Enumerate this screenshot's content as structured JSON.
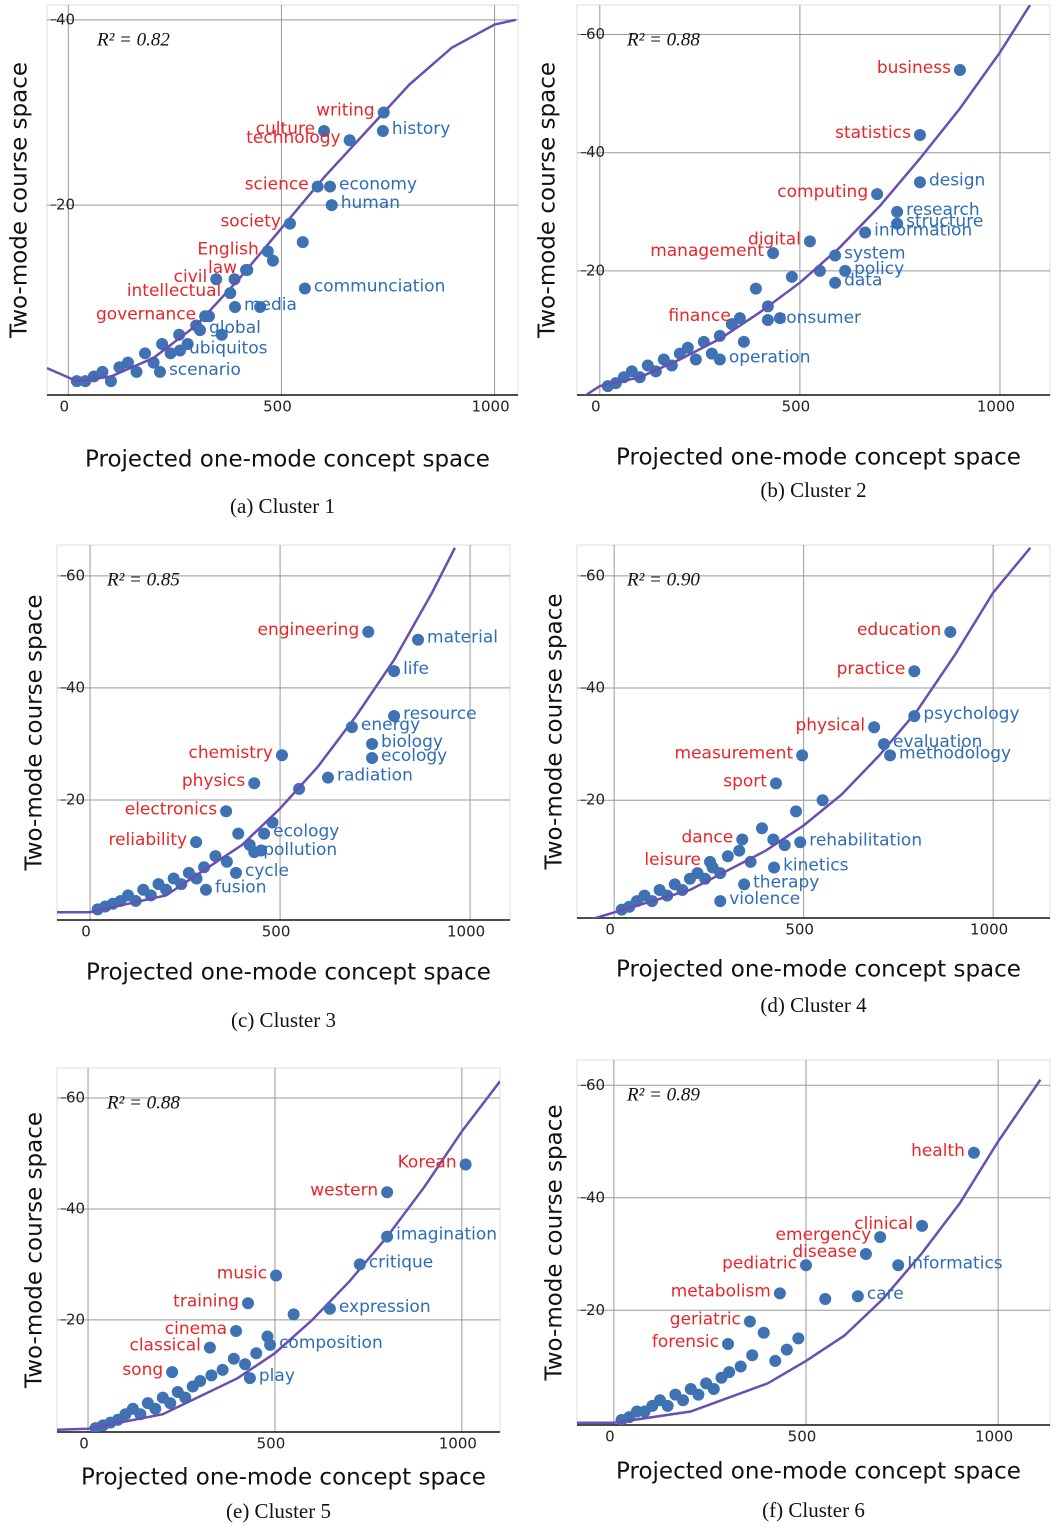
{
  "chart_data": [
    {
      "type": "scatter",
      "caption": "(a)  Cluster 1",
      "annotation": "R² = 0.82",
      "xlabel": "Projected one-mode concept space",
      "ylabel": "Two-mode course space",
      "xlim": [
        -50,
        1055
      ],
      "ylim": [
        -0.5,
        41.6
      ],
      "xticks": [
        0,
        500,
        1000
      ],
      "yticks": [
        20,
        40
      ],
      "grid": true,
      "color": "#3e72b3",
      "x": [
        20,
        40,
        60,
        80,
        100,
        120,
        140,
        160,
        180,
        200,
        220,
        240,
        260,
        280,
        300,
        330,
        360,
        390,
        420,
        450,
        480,
        550
      ],
      "y": [
        1,
        1,
        1.5,
        2,
        1,
        2.5,
        3,
        2,
        4,
        3,
        5,
        4,
        6,
        5,
        7,
        8,
        6,
        12,
        13,
        9,
        14,
        16
      ],
      "labeled_points": [
        {
          "label": "writing",
          "x": 740,
          "y": 30,
          "label_color": "#e8262a"
        },
        {
          "label": "culture",
          "x": 600,
          "y": 28,
          "label_color": "#e8262a"
        },
        {
          "label": "technology",
          "x": 660,
          "y": 27,
          "label_color": "#e8262a"
        },
        {
          "label": "history",
          "x": 738,
          "y": 28,
          "label_color": "#2e6db4"
        },
        {
          "label": "science",
          "x": 585,
          "y": 22,
          "label_color": "#e8262a"
        },
        {
          "label": "economy",
          "x": 614,
          "y": 22,
          "label_color": "#2e6db4"
        },
        {
          "label": "human",
          "x": 618,
          "y": 20,
          "label_color": "#2e6db4"
        },
        {
          "label": "society",
          "x": 520,
          "y": 18,
          "label_color": "#e8262a"
        },
        {
          "label": "English",
          "x": 468,
          "y": 15,
          "label_color": "#e8262a"
        },
        {
          "label": "law",
          "x": 417,
          "y": 13,
          "label_color": "#e8262a"
        },
        {
          "label": "civil",
          "x": 347,
          "y": 12,
          "label_color": "#e8262a"
        },
        {
          "label": "communciation",
          "x": 555,
          "y": 11,
          "label_color": "#2e6db4"
        },
        {
          "label": "intellectual",
          "x": 380,
          "y": 10.5,
          "label_color": "#e8262a"
        },
        {
          "label": "governance",
          "x": 321,
          "y": 8,
          "label_color": "#e8262a"
        },
        {
          "label": "media",
          "x": 391,
          "y": 9,
          "label_color": "#2e6db4"
        },
        {
          "label": "global",
          "x": 309,
          "y": 6.5,
          "label_color": "#2e6db4"
        },
        {
          "label": "ubiquitos",
          "x": 262,
          "y": 4.3,
          "label_color": "#2e6db4"
        },
        {
          "label": "scenario",
          "x": 215,
          "y": 2,
          "label_color": "#2e6db4"
        }
      ],
      "fit": {
        "color": "#6a4fb3",
        "x": [
          -50,
          20,
          100,
          200,
          300,
          400,
          500,
          600,
          700,
          800,
          900,
          1000,
          1050
        ],
        "y": [
          2.4,
          1,
          1.5,
          3.5,
          7,
          12,
          17.5,
          23,
          28,
          33,
          37,
          39.5,
          40
        ]
      }
    },
    {
      "type": "scatter",
      "caption": "(b) Cluster 2",
      "annotation": "R² = 0.88",
      "xlabel": "Projected one-mode concept space",
      "ylabel": "Two-mode course space",
      "xlim": [
        -57,
        1125
      ],
      "ylim": [
        -1,
        65
      ],
      "xticks": [
        0,
        500,
        1000
      ],
      "yticks": [
        20,
        40,
        60
      ],
      "grid": true,
      "color": "#3e72b3",
      "x": [
        20,
        40,
        60,
        80,
        100,
        120,
        140,
        160,
        180,
        200,
        220,
        240,
        260,
        280,
        300,
        330,
        360,
        390,
        420,
        450,
        480,
        550
      ],
      "y": [
        0.5,
        1,
        2,
        3,
        2,
        4,
        3,
        5,
        4,
        6,
        7,
        5,
        8,
        6,
        9,
        11,
        8,
        17,
        14,
        12,
        19,
        20
      ],
      "labeled_points": [
        {
          "label": "business",
          "x": 900,
          "y": 54,
          "label_color": "#e8262a"
        },
        {
          "label": "statistics",
          "x": 800,
          "y": 43,
          "label_color": "#e8262a"
        },
        {
          "label": "computing",
          "x": 693,
          "y": 33,
          "label_color": "#e8262a"
        },
        {
          "label": "design",
          "x": 800,
          "y": 35,
          "label_color": "#2e6db4"
        },
        {
          "label": "research",
          "x": 743,
          "y": 30,
          "label_color": "#2e6db4"
        },
        {
          "label": "structure",
          "x": 743,
          "y": 28,
          "label_color": "#2e6db4"
        },
        {
          "label": "digital",
          "x": 525,
          "y": 25,
          "label_color": "#e8262a"
        },
        {
          "label": "information",
          "x": 663,
          "y": 26.5,
          "label_color": "#2e6db4"
        },
        {
          "label": "system",
          "x": 588,
          "y": 22.6,
          "label_color": "#2e6db4"
        },
        {
          "label": "policy",
          "x": 613,
          "y": 20,
          "label_color": "#2e6db4"
        },
        {
          "label": "data",
          "x": 588,
          "y": 18,
          "label_color": "#2e6db4"
        },
        {
          "label": "management",
          "x": 433,
          "y": 23,
          "label_color": "#e8262a"
        },
        {
          "label": "finance",
          "x": 350,
          "y": 12,
          "label_color": "#e8262a"
        },
        {
          "label": "consumer",
          "x": 420,
          "y": 11.7,
          "label_color": "#2e6db4"
        },
        {
          "label": "operation",
          "x": 300,
          "y": 5,
          "label_color": "#2e6db4"
        }
      ],
      "fit": {
        "color": "#6a4fb3",
        "x": [
          -57,
          0,
          100,
          200,
          300,
          400,
          500,
          600,
          700,
          800,
          900,
          1000,
          1075
        ],
        "y": [
          -2,
          0.5,
          2,
          5,
          8.5,
          13,
          18,
          24,
          31,
          39,
          47.5,
          57,
          65
        ]
      }
    },
    {
      "type": "scatter",
      "caption": "(c) Cluster 3",
      "annotation": "R² = 0.85",
      "xlabel": "Projected one-mode concept space",
      "ylabel": "Two-mode course space",
      "xlim": [
        -87,
        1105
      ],
      "ylim": [
        -1.4,
        65.5
      ],
      "xticks": [
        0,
        500,
        1000
      ],
      "yticks": [
        20,
        40,
        60
      ],
      "grid": true,
      "color": "#3e72b3",
      "x": [
        20,
        40,
        60,
        80,
        100,
        120,
        140,
        160,
        180,
        200,
        220,
        240,
        260,
        280,
        300,
        330,
        360,
        390,
        420,
        450,
        480,
        550
      ],
      "y": [
        0.5,
        1,
        1.5,
        2,
        3,
        2,
        4,
        3,
        5,
        4,
        6,
        5,
        7,
        6,
        8,
        10,
        9,
        14,
        12,
        11,
        16,
        22
      ],
      "labeled_points": [
        {
          "label": "engineering",
          "x": 732,
          "y": 50,
          "label_color": "#e8262a"
        },
        {
          "label": "material",
          "x": 863,
          "y": 48.6,
          "label_color": "#2e6db4"
        },
        {
          "label": "life",
          "x": 800,
          "y": 43,
          "label_color": "#2e6db4"
        },
        {
          "label": "resource",
          "x": 800,
          "y": 35,
          "label_color": "#2e6db4"
        },
        {
          "label": "energy",
          "x": 689,
          "y": 33,
          "label_color": "#2e6db4"
        },
        {
          "label": "biology",
          "x": 742,
          "y": 30,
          "label_color": "#2e6db4"
        },
        {
          "label": "ecology",
          "x": 742,
          "y": 27.5,
          "label_color": "#2e6db4"
        },
        {
          "label": "radiation",
          "x": 626,
          "y": 24,
          "label_color": "#2e6db4"
        },
        {
          "label": "chemistry",
          "x": 505,
          "y": 28,
          "label_color": "#e8262a"
        },
        {
          "label": "physics",
          "x": 432,
          "y": 23,
          "label_color": "#e8262a"
        },
        {
          "label": "electronics",
          "x": 358,
          "y": 18,
          "label_color": "#e8262a"
        },
        {
          "label": "reliability",
          "x": 279,
          "y": 12.5,
          "label_color": "#e8262a"
        },
        {
          "label": "ecology",
          "x": 458,
          "y": 14,
          "label_color": "#2e6db4"
        },
        {
          "label": "pollution",
          "x": 432,
          "y": 10.7,
          "label_color": "#2e6db4"
        },
        {
          "label": "cycle",
          "x": 384,
          "y": 7,
          "label_color": "#2e6db4"
        },
        {
          "label": "fusion",
          "x": 305,
          "y": 4,
          "label_color": "#2e6db4"
        }
      ],
      "fit": {
        "color": "#6a4fb3",
        "x": [
          -87,
          0,
          200,
          400,
          500,
          600,
          700,
          800,
          900,
          960
        ],
        "y": [
          0,
          0,
          3,
          12,
          18.5,
          26,
          35,
          45,
          57,
          65
        ]
      }
    },
    {
      "type": "scatter",
      "caption": "(d) Cluster 4",
      "annotation": "R² = 0.90",
      "xlabel": "Projected one-mode concept space",
      "ylabel": "Two-mode course space",
      "xlim": [
        -98,
        1150
      ],
      "ylim": [
        -1,
        65.5
      ],
      "xticks": [
        0,
        500,
        1000
      ],
      "yticks": [
        20,
        40,
        60
      ],
      "grid": true,
      "color": "#3e72b3",
      "x": [
        20,
        40,
        60,
        80,
        100,
        120,
        140,
        160,
        180,
        200,
        220,
        240,
        260,
        280,
        300,
        330,
        360,
        390,
        420,
        450,
        480,
        550
      ],
      "y": [
        0.5,
        1,
        2,
        3,
        2,
        4,
        3,
        5,
        4,
        6,
        7,
        6,
        8,
        7,
        10,
        11,
        9,
        15,
        13,
        12,
        18,
        20
      ],
      "labeled_points": [
        {
          "label": "education",
          "x": 887,
          "y": 50,
          "label_color": "#e8262a"
        },
        {
          "label": "practice",
          "x": 792,
          "y": 43,
          "label_color": "#e8262a"
        },
        {
          "label": "psychology",
          "x": 792,
          "y": 35,
          "label_color": "#2e6db4"
        },
        {
          "label": "physical",
          "x": 686,
          "y": 33,
          "label_color": "#e8262a"
        },
        {
          "label": "evaluation",
          "x": 712,
          "y": 30,
          "label_color": "#2e6db4"
        },
        {
          "label": "methodology",
          "x": 728,
          "y": 28,
          "label_color": "#2e6db4"
        },
        {
          "label": "measurement",
          "x": 496,
          "y": 28,
          "label_color": "#e8262a"
        },
        {
          "label": "sport",
          "x": 427,
          "y": 23,
          "label_color": "#e8262a"
        },
        {
          "label": "dance",
          "x": 338,
          "y": 13,
          "label_color": "#e8262a"
        },
        {
          "label": "leisure",
          "x": 253,
          "y": 9,
          "label_color": "#e8262a"
        },
        {
          "label": "rehabilitation",
          "x": 491,
          "y": 12.5,
          "label_color": "#2e6db4"
        },
        {
          "label": "kinetics",
          "x": 422,
          "y": 8,
          "label_color": "#2e6db4"
        },
        {
          "label": "therapy",
          "x": 343,
          "y": 5,
          "label_color": "#2e6db4"
        },
        {
          "label": "violence",
          "x": 280,
          "y": 2,
          "label_color": "#2e6db4"
        }
      ],
      "fit": {
        "color": "#6a4fb3",
        "x": [
          -98,
          0,
          200,
          400,
          500,
          600,
          700,
          800,
          900,
          1000,
          1098
        ],
        "y": [
          -2,
          0,
          4,
          11,
          15.5,
          21,
          28,
          36,
          46,
          57,
          65
        ]
      }
    },
    {
      "type": "scatter",
      "caption": "(e) Cluster 5",
      "annotation": "R² = 0.88",
      "xlabel": "Projected one-mode concept space",
      "ylabel": "Two-mode course space",
      "xlim": [
        -83,
        1102
      ],
      "ylim": [
        -0.2,
        65.4
      ],
      "xticks": [
        0,
        500,
        1000
      ],
      "yticks": [
        20,
        40,
        60
      ],
      "grid": true,
      "color": "#3e72b3",
      "x": [
        20,
        40,
        60,
        80,
        100,
        120,
        140,
        160,
        180,
        200,
        220,
        240,
        260,
        280,
        300,
        330,
        360,
        390,
        420,
        450,
        480,
        550
      ],
      "y": [
        0.5,
        1,
        1.5,
        2,
        3,
        4,
        3,
        5,
        4,
        6,
        5,
        7,
        6,
        8,
        9,
        10,
        11,
        13,
        12,
        14,
        17,
        21
      ],
      "labeled_points": [
        {
          "label": "Korean",
          "x": 1010,
          "y": 48,
          "label_color": "#e8262a"
        },
        {
          "label": "western",
          "x": 800,
          "y": 43,
          "label_color": "#e8262a"
        },
        {
          "label": "imagination",
          "x": 800,
          "y": 35,
          "label_color": "#2e6db4"
        },
        {
          "label": "critique",
          "x": 727,
          "y": 30,
          "label_color": "#2e6db4"
        },
        {
          "label": "music",
          "x": 503,
          "y": 28,
          "label_color": "#e8262a"
        },
        {
          "label": "training",
          "x": 428,
          "y": 23,
          "label_color": "#e8262a"
        },
        {
          "label": "expression",
          "x": 647,
          "y": 22,
          "label_color": "#2e6db4"
        },
        {
          "label": "cinema",
          "x": 396,
          "y": 18,
          "label_color": "#e8262a"
        },
        {
          "label": "classical",
          "x": 326,
          "y": 15,
          "label_color": "#e8262a"
        },
        {
          "label": "composition",
          "x": 487,
          "y": 15.5,
          "label_color": "#2e6db4"
        },
        {
          "label": "song",
          "x": 225,
          "y": 10.6,
          "label_color": "#e8262a"
        },
        {
          "label": "play",
          "x": 433,
          "y": 9.5,
          "label_color": "#2e6db4"
        }
      ],
      "fit": {
        "color": "#6a4fb3",
        "x": [
          -83,
          0,
          200,
          400,
          500,
          600,
          700,
          800,
          900,
          1000,
          1102
        ],
        "y": [
          0.2,
          0.4,
          3,
          9.5,
          14,
          20,
          27,
          35,
          44,
          54,
          63
        ]
      }
    },
    {
      "type": "scatter",
      "caption": "(f) Cluster 6",
      "annotation": "R² = 0.89",
      "xlabel": "Projected one-mode concept space",
      "ylabel": "Two-mode course space",
      "xlim": [
        -96,
        1135
      ],
      "ylim": [
        -0.4,
        64.5
      ],
      "xticks": [
        0,
        500,
        1000
      ],
      "yticks": [
        20,
        40,
        60
      ],
      "grid": true,
      "color": "#3e72b3",
      "x": [
        20,
        40,
        60,
        80,
        100,
        120,
        140,
        160,
        180,
        200,
        220,
        240,
        260,
        280,
        300,
        330,
        360,
        390,
        420,
        450,
        480,
        550
      ],
      "y": [
        0.5,
        1,
        2,
        2,
        3,
        4,
        3,
        5,
        4,
        6,
        5,
        7,
        6,
        8,
        9,
        10,
        12,
        16,
        11,
        13,
        15,
        22
      ],
      "labeled_points": [
        {
          "label": "health",
          "x": 937,
          "y": 48,
          "label_color": "#e8262a"
        },
        {
          "label": "clinical",
          "x": 802,
          "y": 35,
          "label_color": "#e8262a"
        },
        {
          "label": "emergency",
          "x": 693,
          "y": 33,
          "label_color": "#e8262a"
        },
        {
          "label": "Informatics",
          "x": 740,
          "y": 28,
          "label_color": "#2e6db4"
        },
        {
          "label": "disease",
          "x": 656,
          "y": 30,
          "label_color": "#e8262a"
        },
        {
          "label": "pediatric",
          "x": 500,
          "y": 28,
          "label_color": "#e8262a"
        },
        {
          "label": "care",
          "x": 635,
          "y": 22.5,
          "label_color": "#2e6db4"
        },
        {
          "label": "metabolism",
          "x": 432,
          "y": 23,
          "label_color": "#e8262a"
        },
        {
          "label": "geriatric",
          "x": 354,
          "y": 18,
          "label_color": "#e8262a"
        },
        {
          "label": "forensic",
          "x": 297,
          "y": 14,
          "label_color": "#e8262a"
        }
      ],
      "fit": {
        "color": "#6a4fb3",
        "x": [
          -96,
          0,
          200,
          400,
          500,
          600,
          700,
          800,
          900,
          1000,
          1110
        ],
        "y": [
          0,
          0,
          2,
          7,
          11,
          15.5,
          22,
          30,
          39,
          50,
          61
        ]
      }
    }
  ]
}
